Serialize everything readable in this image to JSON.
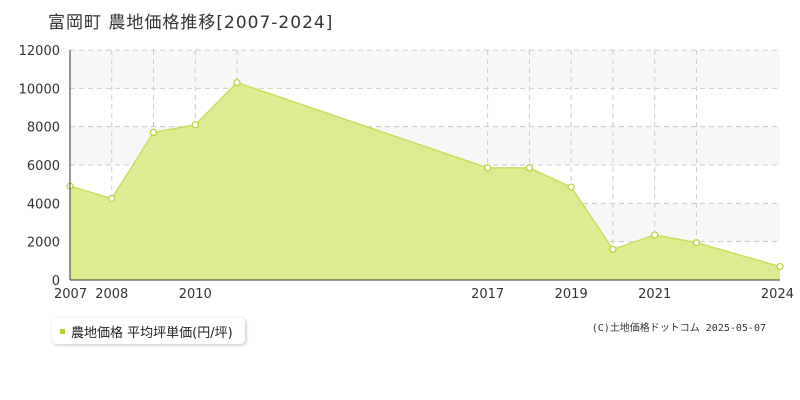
{
  "header": {
    "title": "富岡町 農地価格推移[2007-2024]"
  },
  "legend": {
    "label": "農地価格 平均坪単価(円/坪)"
  },
  "credit": "(C)土地価格ドットコム 2025-05-07",
  "colors": {
    "fill": "#dced91",
    "line": "#c5e060",
    "marker": "#b5d334",
    "grid": "#cccccc",
    "band": "#f7f7f7"
  },
  "chart_data": {
    "type": "area",
    "title": "富岡町 農地価格推移[2007-2024]",
    "xlabel": "",
    "ylabel": "",
    "ylim": [
      0,
      12000
    ],
    "yticks": [
      "0",
      "2000",
      "4000",
      "6000",
      "8000",
      "10000",
      "12000"
    ],
    "x_tick_labels": [
      "2007",
      "2008",
      "2010",
      "2017",
      "2019",
      "2021",
      "2024"
    ],
    "grid": true,
    "legend_position": "bottom-left",
    "series": [
      {
        "name": "農地価格 平均坪単価(円/坪)",
        "x": [
          "2007",
          "2008",
          "2009",
          "2010",
          "2011",
          "2017",
          "2018",
          "2019",
          "2020",
          "2021",
          "2022",
          "2024"
        ],
        "values": [
          4900,
          4250,
          7700,
          8100,
          10300,
          5850,
          5850,
          4850,
          1600,
          2350,
          1950,
          700
        ]
      }
    ]
  }
}
